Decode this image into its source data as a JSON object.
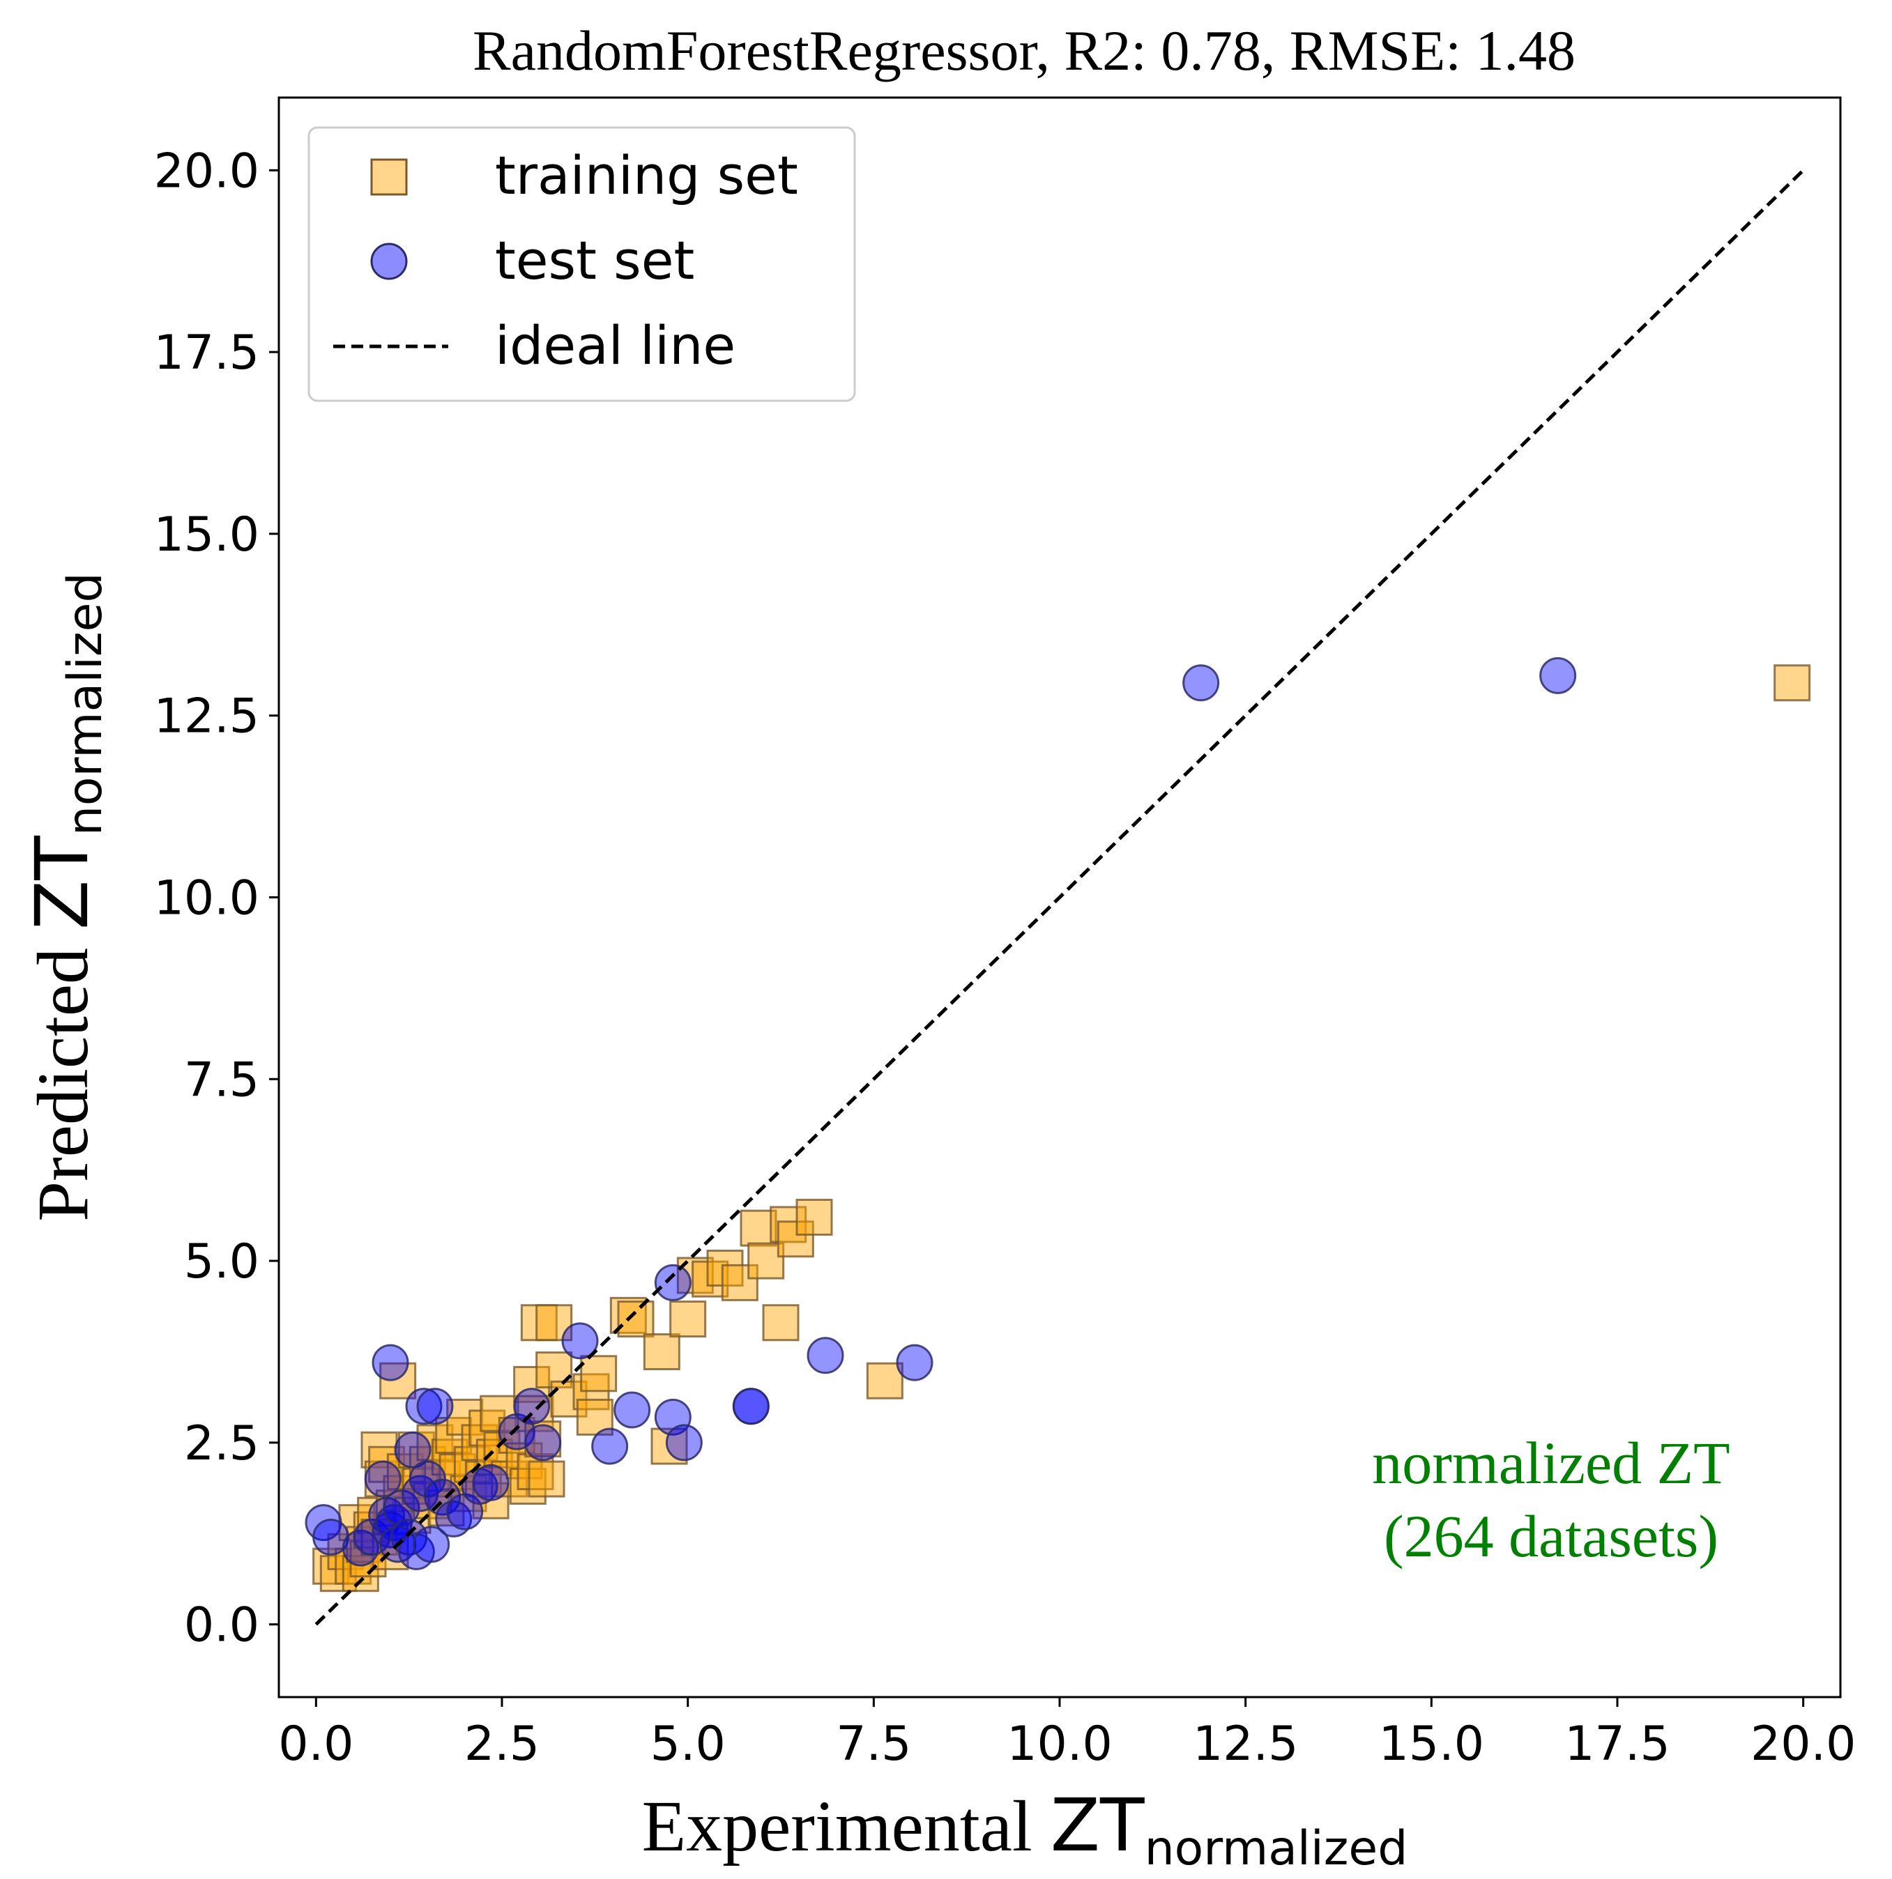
{
  "chart_data": {
    "type": "scatter",
    "title": "RandomForestRegressor, R2: 0.78, RMSE: 1.48",
    "xlabel": {
      "main": "Experimental ",
      "symbol": "ZT",
      "sub": "normalized"
    },
    "ylabel": {
      "main": "Predicted ",
      "symbol": "ZT",
      "sub": "normalized"
    },
    "xlim": [
      -0.5,
      20.5
    ],
    "ylim": [
      -1.0,
      21.0
    ],
    "x_ticks": [
      0.0,
      2.5,
      5.0,
      7.5,
      10.0,
      12.5,
      15.0,
      17.5,
      20.0
    ],
    "y_ticks": [
      0.0,
      2.5,
      5.0,
      7.5,
      10.0,
      12.5,
      15.0,
      17.5,
      20.0
    ],
    "x_tick_labels": [
      "0.0",
      "2.5",
      "5.0",
      "7.5",
      "10.0",
      "12.5",
      "15.0",
      "17.5",
      "20.0"
    ],
    "y_tick_labels": [
      "0.0",
      "2.5",
      "5.0",
      "7.5",
      "10.0",
      "12.5",
      "15.0",
      "17.5",
      "20.0"
    ],
    "grid": false,
    "legend": {
      "position": "top-left",
      "entries": [
        {
          "label": "training set",
          "marker": "square",
          "color": "#FFA500"
        },
        {
          "label": "test set",
          "marker": "circle",
          "color": "#0000FF"
        },
        {
          "label": "ideal line",
          "marker": "dashed-line",
          "color": "#000000"
        }
      ]
    },
    "annotation": {
      "lines": [
        "normalized ZT",
        "(264 datasets)"
      ],
      "color": "#008000",
      "position": "bottom-right"
    },
    "ideal_line": {
      "x": [
        0,
        20
      ],
      "y": [
        0,
        20
      ]
    },
    "series": [
      {
        "name": "training set",
        "marker": "square",
        "color": "#FFA500",
        "points": [
          [
            0.2,
            0.8
          ],
          [
            0.3,
            0.7
          ],
          [
            0.4,
            1.0
          ],
          [
            0.5,
            0.8
          ],
          [
            0.55,
            1.4
          ],
          [
            0.6,
            0.7
          ],
          [
            0.65,
            1.1
          ],
          [
            0.7,
            0.9
          ],
          [
            0.75,
            1.3
          ],
          [
            0.8,
            1.5
          ],
          [
            0.85,
            2.4
          ],
          [
            0.85,
            1.2
          ],
          [
            0.9,
            2.0
          ],
          [
            0.95,
            2.2
          ],
          [
            1.0,
            1.0
          ],
          [
            1.05,
            1.6
          ],
          [
            1.1,
            3.35
          ],
          [
            1.15,
            1.8
          ],
          [
            1.2,
            2.1
          ],
          [
            1.3,
            1.5
          ],
          [
            1.35,
            2.4
          ],
          [
            1.4,
            1.9
          ],
          [
            1.5,
            2.2
          ],
          [
            1.55,
            1.7
          ],
          [
            1.6,
            2.5
          ],
          [
            1.7,
            2.0
          ],
          [
            1.75,
            1.6
          ],
          [
            1.8,
            2.3
          ],
          [
            1.85,
            2.6
          ],
          [
            1.9,
            2.1
          ],
          [
            2.0,
            2.85
          ],
          [
            2.05,
            1.8
          ],
          [
            2.1,
            2.2
          ],
          [
            2.2,
            2.5
          ],
          [
            2.25,
            2.0
          ],
          [
            2.3,
            2.7
          ],
          [
            2.35,
            1.7
          ],
          [
            2.4,
            2.3
          ],
          [
            2.45,
            2.9
          ],
          [
            2.5,
            2.4
          ],
          [
            2.6,
            2.0
          ],
          [
            2.7,
            2.6
          ],
          [
            2.8,
            2.25
          ],
          [
            2.85,
            1.9
          ],
          [
            2.9,
            3.3
          ],
          [
            2.95,
            2.9
          ],
          [
            2.95,
            2.1
          ],
          [
            3.0,
            4.15
          ],
          [
            3.05,
            2.55
          ],
          [
            3.1,
            2.0
          ],
          [
            3.2,
            4.15
          ],
          [
            3.2,
            3.5
          ],
          [
            3.4,
            3.1
          ],
          [
            3.7,
            3.2
          ],
          [
            3.75,
            2.85
          ],
          [
            3.8,
            3.45
          ],
          [
            4.2,
            4.25
          ],
          [
            4.3,
            4.2
          ],
          [
            4.65,
            3.75
          ],
          [
            4.75,
            2.45
          ],
          [
            5.0,
            4.2
          ],
          [
            5.1,
            4.8
          ],
          [
            5.3,
            4.75
          ],
          [
            5.5,
            4.9
          ],
          [
            5.7,
            4.7
          ],
          [
            5.95,
            5.45
          ],
          [
            6.05,
            5.0
          ],
          [
            6.25,
            4.15
          ],
          [
            6.35,
            5.5
          ],
          [
            6.45,
            5.3
          ],
          [
            6.7,
            5.6
          ],
          [
            7.65,
            3.35
          ],
          [
            19.85,
            12.95
          ]
        ]
      },
      {
        "name": "test set",
        "marker": "circle",
        "color": "#0000FF",
        "points": [
          [
            0.1,
            1.4
          ],
          [
            0.2,
            1.2
          ],
          [
            0.6,
            1.05
          ],
          [
            0.75,
            1.2
          ],
          [
            0.9,
            2.0
          ],
          [
            0.95,
            1.5
          ],
          [
            1.0,
            3.6
          ],
          [
            1.0,
            1.3
          ],
          [
            1.05,
            1.4
          ],
          [
            1.1,
            1.1
          ],
          [
            1.15,
            1.6
          ],
          [
            1.25,
            1.2
          ],
          [
            1.3,
            2.4
          ],
          [
            1.35,
            1.0
          ],
          [
            1.4,
            1.8
          ],
          [
            1.45,
            3.0
          ],
          [
            1.5,
            2.0
          ],
          [
            1.55,
            1.1
          ],
          [
            1.6,
            3.0
          ],
          [
            1.7,
            1.75
          ],
          [
            1.85,
            1.45
          ],
          [
            2.0,
            1.55
          ],
          [
            2.2,
            1.9
          ],
          [
            2.35,
            1.95
          ],
          [
            2.7,
            2.65
          ],
          [
            2.9,
            3.0
          ],
          [
            3.05,
            2.5
          ],
          [
            3.55,
            3.9
          ],
          [
            3.95,
            2.45
          ],
          [
            4.25,
            2.95
          ],
          [
            4.8,
            4.7
          ],
          [
            4.8,
            2.85
          ],
          [
            4.95,
            2.5
          ],
          [
            5.85,
            3.0
          ],
          [
            5.85,
            3.0
          ],
          [
            6.85,
            3.7
          ],
          [
            8.05,
            3.6
          ],
          [
            11.9,
            12.95
          ],
          [
            16.7,
            13.05
          ]
        ]
      }
    ]
  }
}
